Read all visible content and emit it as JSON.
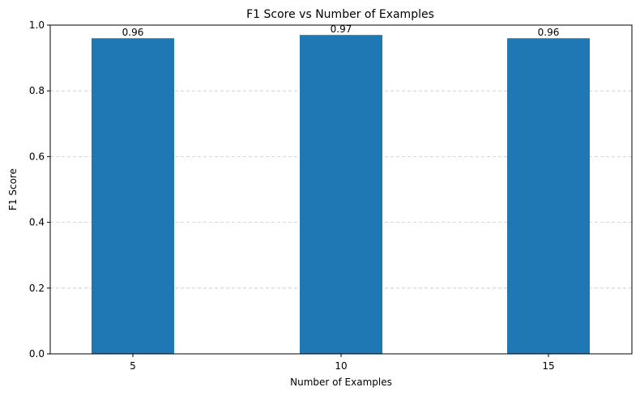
{
  "chart_data": {
    "type": "bar",
    "title": "F1 Score vs Number of Examples",
    "xlabel": "Number of Examples",
    "ylabel": "F1 Score",
    "categories": [
      "5",
      "10",
      "15"
    ],
    "values": [
      0.96,
      0.97,
      0.96
    ],
    "value_labels": [
      "0.96",
      "0.97",
      "0.96"
    ],
    "ylim": [
      0,
      1.0
    ],
    "yticks": [
      0.0,
      0.2,
      0.4,
      0.6,
      0.8,
      1.0
    ],
    "ytick_labels": [
      "0.0",
      "0.2",
      "0.4",
      "0.6",
      "0.8",
      "1.0"
    ],
    "grid": {
      "y": true,
      "x": false,
      "style": "dashed"
    },
    "legend": "none",
    "bar_color": "#1f77b4",
    "grid_color": "#c8c8c8"
  }
}
